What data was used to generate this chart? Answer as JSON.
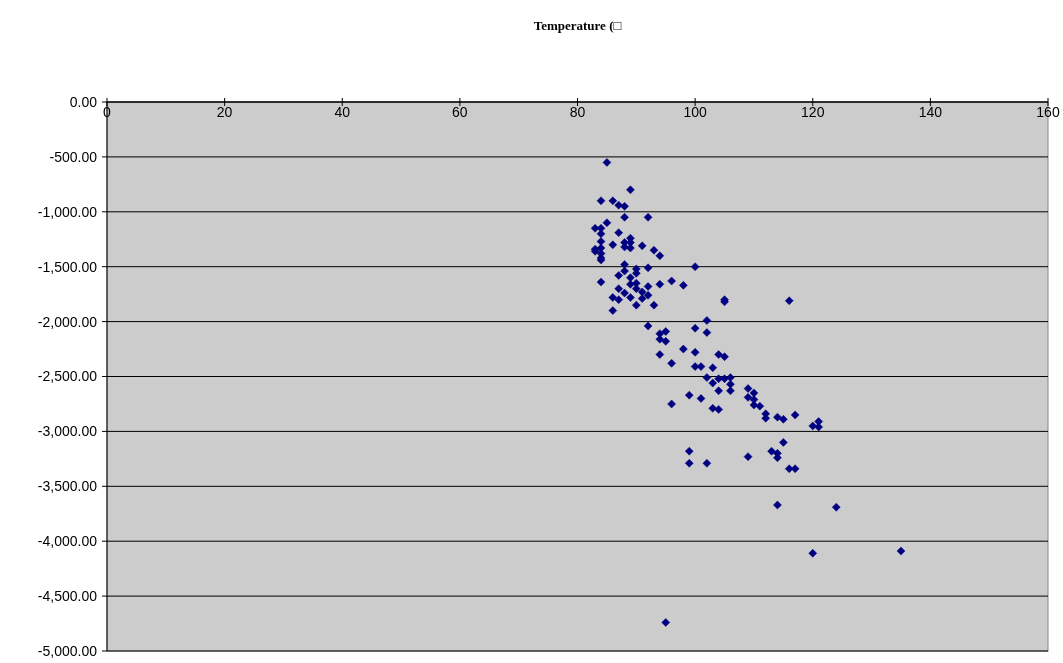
{
  "chart_data": {
    "type": "scatter",
    "title": "Temperature (□",
    "xlim": [
      0,
      160
    ],
    "xticks": [
      0,
      20,
      40,
      60,
      80,
      100,
      120,
      140,
      160
    ],
    "ylim": [
      -5000,
      0
    ],
    "yticks": [
      {
        "value": 0,
        "label": "0.00"
      },
      {
        "value": -500,
        "label": "-500.00"
      },
      {
        "value": -1000,
        "label": "-1,000.00"
      },
      {
        "value": -1500,
        "label": "-1,500.00"
      },
      {
        "value": -2000,
        "label": "-2,000.00"
      },
      {
        "value": -2500,
        "label": "-2,500.00"
      },
      {
        "value": -3000,
        "label": "-3,000.00"
      },
      {
        "value": -3500,
        "label": "-3,500.00"
      },
      {
        "value": -4000,
        "label": "-4,000.00"
      },
      {
        "value": -4500,
        "label": "-4,500.00"
      },
      {
        "value": -5000,
        "label": "-5,000.00"
      }
    ],
    "grid": "y",
    "marker": "diamond",
    "series": [
      {
        "color": "#000080",
        "x": [
          85,
          89,
          84,
          86,
          87,
          88,
          92,
          88,
          85,
          84,
          83,
          84,
          87,
          89,
          84,
          88,
          89,
          86,
          91,
          88,
          89,
          84,
          83,
          83,
          84,
          93,
          94,
          84,
          84,
          88,
          100,
          90,
          92,
          88,
          90,
          87,
          89,
          90,
          84,
          89,
          96,
          98,
          94,
          92,
          87,
          90,
          91,
          88,
          92,
          89,
          86,
          91,
          87,
          105,
          105,
          116,
          93,
          90,
          86,
          102,
          92,
          100,
          95,
          94,
          102,
          94,
          95,
          98,
          100,
          94,
          104,
          105,
          96,
          100,
          101,
          103,
          102,
          104,
          105,
          106,
          103,
          106,
          104,
          106,
          109,
          110,
          99,
          109,
          101,
          110,
          110,
          111,
          96,
          103,
          104,
          112,
          112,
          117,
          114,
          115,
          121,
          120,
          121,
          115,
          99,
          113,
          114,
          109,
          114,
          99,
          102,
          116,
          117,
          114,
          124,
          120,
          135,
          95
        ],
        "values": [
          -550,
          -800,
          -900,
          -900,
          -940,
          -950,
          -1050,
          -1050,
          -1100,
          -1150,
          -1150,
          -1200,
          -1190,
          -1240,
          -1270,
          -1280,
          -1280,
          -1300,
          -1310,
          -1320,
          -1330,
          -1330,
          -1340,
          -1360,
          -1380,
          -1350,
          -1400,
          -1420,
          -1440,
          -1480,
          -1500,
          -1520,
          -1510,
          -1540,
          -1560,
          -1580,
          -1600,
          -1650,
          -1640,
          -1660,
          -1630,
          -1670,
          -1660,
          -1680,
          -1700,
          -1700,
          -1730,
          -1740,
          -1760,
          -1780,
          -1780,
          -1790,
          -1800,
          -1800,
          -1820,
          -1810,
          -1850,
          -1850,
          -1900,
          -1990,
          -2040,
          -2060,
          -2090,
          -2110,
          -2100,
          -2160,
          -2180,
          -2250,
          -2280,
          -2300,
          -2300,
          -2320,
          -2380,
          -2410,
          -2410,
          -2420,
          -2510,
          -2520,
          -2520,
          -2510,
          -2560,
          -2570,
          -2630,
          -2630,
          -2610,
          -2650,
          -2670,
          -2690,
          -2700,
          -2710,
          -2760,
          -2770,
          -2750,
          -2790,
          -2800,
          -2840,
          -2880,
          -2850,
          -2870,
          -2890,
          -2910,
          -2950,
          -2960,
          -3100,
          -3180,
          -3180,
          -3200,
          -3230,
          -3240,
          -3290,
          -3290,
          -3340,
          -3340,
          -3670,
          -3690,
          -4110,
          -4090,
          -4740
        ]
      }
    ]
  }
}
